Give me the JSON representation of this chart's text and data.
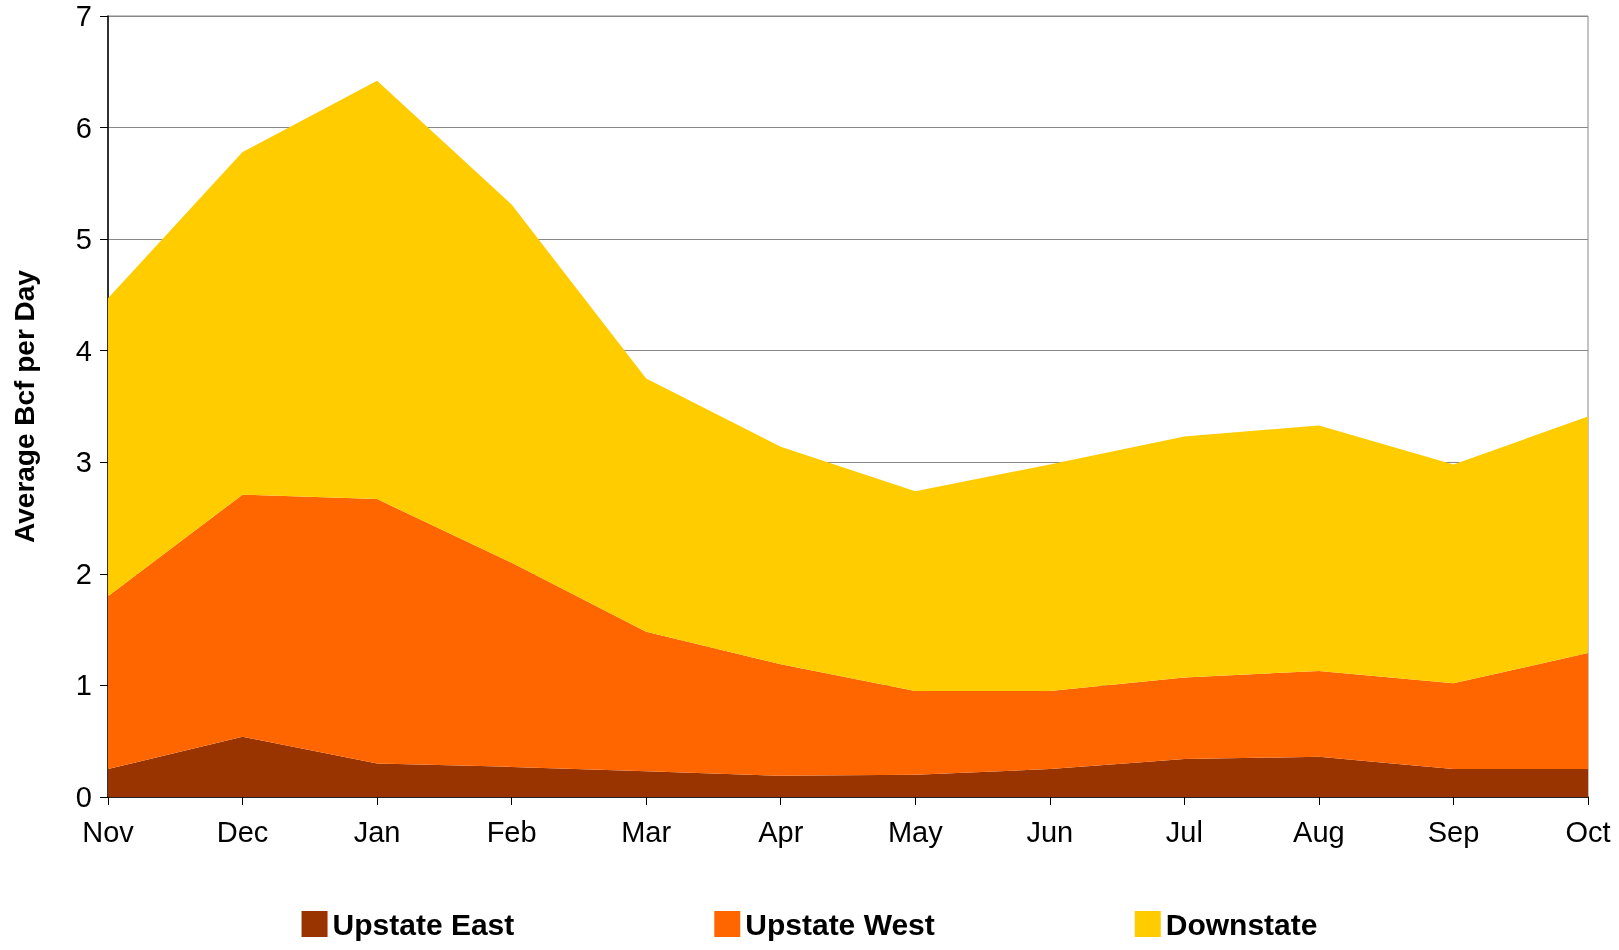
{
  "chart_data": {
    "type": "area",
    "stacked": true,
    "ylabel": "Average Bcf per Day",
    "categories": [
      "Nov",
      "Dec",
      "Jan",
      "Feb",
      "Mar",
      "Apr",
      "May",
      "Jun",
      "Jul",
      "Aug",
      "Sep",
      "Oct"
    ],
    "series": [
      {
        "name": "Upstate East",
        "color": "#993300",
        "values": [
          0.25,
          0.54,
          0.3,
          0.27,
          0.23,
          0.19,
          0.2,
          0.25,
          0.34,
          0.36,
          0.25,
          0.25
        ]
      },
      {
        "name": "Upstate West",
        "color": "#ff6600",
        "values": [
          1.55,
          2.17,
          2.37,
          1.83,
          1.25,
          1.0,
          0.75,
          0.7,
          0.73,
          0.77,
          0.77,
          1.04
        ]
      },
      {
        "name": "Downstate",
        "color": "#ffcc00",
        "values": [
          2.67,
          3.07,
          3.75,
          3.21,
          2.27,
          1.95,
          1.79,
          2.03,
          2.16,
          2.2,
          1.96,
          2.12
        ]
      }
    ],
    "ylim": [
      0,
      7
    ],
    "yticks": [
      0,
      1,
      2,
      3,
      4,
      5,
      6,
      7
    ],
    "grid": "y",
    "legend": "bottom"
  }
}
